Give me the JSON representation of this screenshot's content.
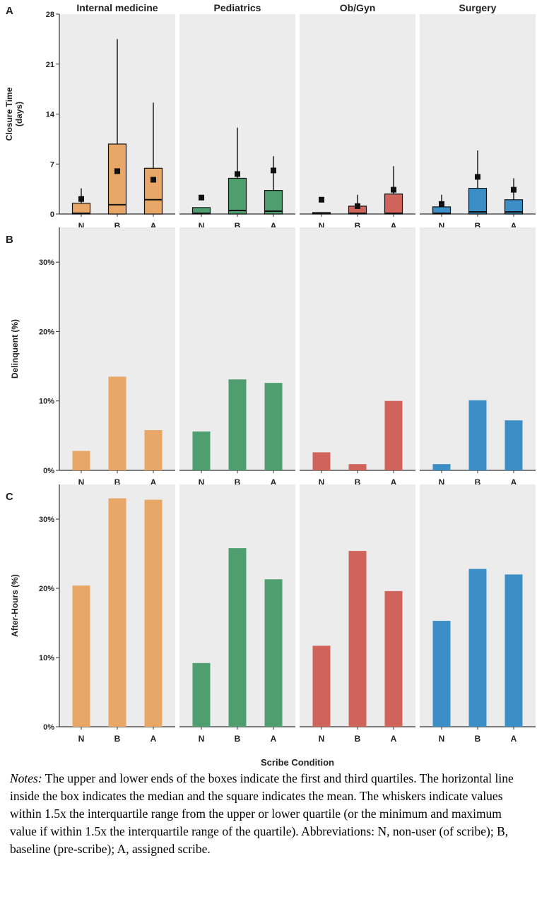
{
  "chart_data": [
    {
      "panel": "A",
      "type": "box",
      "ylabel": "Closure Time\n(days)",
      "ylim": [
        0,
        28
      ],
      "yticks": [
        0,
        7,
        14,
        21,
        28
      ],
      "facets": [
        {
          "title": "Internal medicine",
          "color": "#E8A766",
          "categories": [
            "N",
            "B",
            "A"
          ],
          "boxes": [
            {
              "q1": 0,
              "median": 0.1,
              "q3": 1.5,
              "mean": 2.1,
              "whisker_low": 0,
              "whisker_high": 3.6
            },
            {
              "q1": 0,
              "median": 1.3,
              "q3": 9.8,
              "mean": 6.0,
              "whisker_low": 0,
              "whisker_high": 24.5
            },
            {
              "q1": 0,
              "median": 2.0,
              "q3": 6.4,
              "mean": 4.8,
              "whisker_low": 0,
              "whisker_high": 15.6
            }
          ]
        },
        {
          "title": "Pediatrics",
          "color": "#4E9E70",
          "categories": [
            "N",
            "B",
            "A"
          ],
          "boxes": [
            {
              "q1": 0,
              "median": 0.1,
              "q3": 0.9,
              "mean": 2.3,
              "whisker_low": 0,
              "whisker_high": 0.9
            },
            {
              "q1": 0,
              "median": 0.5,
              "q3": 5.0,
              "mean": 5.6,
              "whisker_low": 0,
              "whisker_high": 12.1
            },
            {
              "q1": 0,
              "median": 0.4,
              "q3": 3.3,
              "mean": 6.1,
              "whisker_low": 0,
              "whisker_high": 8.1
            }
          ]
        },
        {
          "title": "Ob/Gyn",
          "color": "#D0645A",
          "categories": [
            "N",
            "B",
            "A"
          ],
          "boxes": [
            {
              "q1": 0,
              "median": 0.1,
              "q3": 0.2,
              "mean": 2.0,
              "whisker_low": 0,
              "whisker_high": 0.2
            },
            {
              "q1": 0,
              "median": 0.1,
              "q3": 1.1,
              "mean": 1.1,
              "whisker_low": 0,
              "whisker_high": 2.7
            },
            {
              "q1": 0,
              "median": 0.1,
              "q3": 2.8,
              "mean": 3.4,
              "whisker_low": 0,
              "whisker_high": 6.7
            }
          ]
        },
        {
          "title": "Surgery",
          "color": "#3C8FC6",
          "categories": [
            "N",
            "B",
            "A"
          ],
          "boxes": [
            {
              "q1": 0,
              "median": 0.1,
              "q3": 1.0,
              "mean": 1.4,
              "whisker_low": 0,
              "whisker_high": 2.7
            },
            {
              "q1": 0,
              "median": 0.3,
              "q3": 3.6,
              "mean": 5.2,
              "whisker_low": 0,
              "whisker_high": 8.9
            },
            {
              "q1": 0,
              "median": 0.3,
              "q3": 2.0,
              "mean": 3.4,
              "whisker_low": 0,
              "whisker_high": 5.0
            }
          ]
        }
      ]
    },
    {
      "panel": "B",
      "type": "bar",
      "ylabel": "Delinquent (%)",
      "ylim": [
        0,
        35
      ],
      "yticks": [
        0,
        10,
        20,
        30
      ],
      "facets": [
        {
          "title": "Internal medicine",
          "categories": [
            "N",
            "B",
            "A"
          ],
          "values": [
            2.8,
            13.5,
            5.8
          ]
        },
        {
          "title": "Pediatrics",
          "categories": [
            "N",
            "B",
            "A"
          ],
          "values": [
            5.6,
            13.1,
            12.6
          ]
        },
        {
          "title": "Ob/Gyn",
          "categories": [
            "N",
            "B",
            "A"
          ],
          "values": [
            2.6,
            0.9,
            10.0
          ]
        },
        {
          "title": "Surgery",
          "categories": [
            "N",
            "B",
            "A"
          ],
          "values": [
            0.9,
            10.1,
            7.2
          ]
        }
      ]
    },
    {
      "panel": "C",
      "type": "bar",
      "ylabel": "After-Hours (%)",
      "ylim": [
        0,
        35
      ],
      "yticks": [
        0,
        10,
        20,
        30
      ],
      "xlabel": "Scribe Condition",
      "facets": [
        {
          "title": "Internal medicine",
          "categories": [
            "N",
            "B",
            "A"
          ],
          "values": [
            20.4,
            33.0,
            32.8
          ]
        },
        {
          "title": "Pediatrics",
          "categories": [
            "N",
            "B",
            "A"
          ],
          "values": [
            9.2,
            25.8,
            21.3
          ]
        },
        {
          "title": "Ob/Gyn",
          "categories": [
            "N",
            "B",
            "A"
          ],
          "values": [
            11.7,
            25.4,
            19.6
          ]
        },
        {
          "title": "Surgery",
          "categories": [
            "N",
            "B",
            "A"
          ],
          "values": [
            15.3,
            22.8,
            22.0
          ]
        }
      ]
    }
  ],
  "notes": {
    "label": "Notes:",
    "text": " The upper and lower ends of the boxes indicate the first and third quartiles. The horizontal line inside the box indicates the median and the square indicates the mean. The whiskers indicate values within 1.5x the interquartile range from the upper or lower quartile (or the minimum and maximum value if within 1.5x the interquartile range of the quartile). Abbreviations: N, non-user (of scribe); B, baseline (pre-scribe); A, assigned scribe."
  }
}
